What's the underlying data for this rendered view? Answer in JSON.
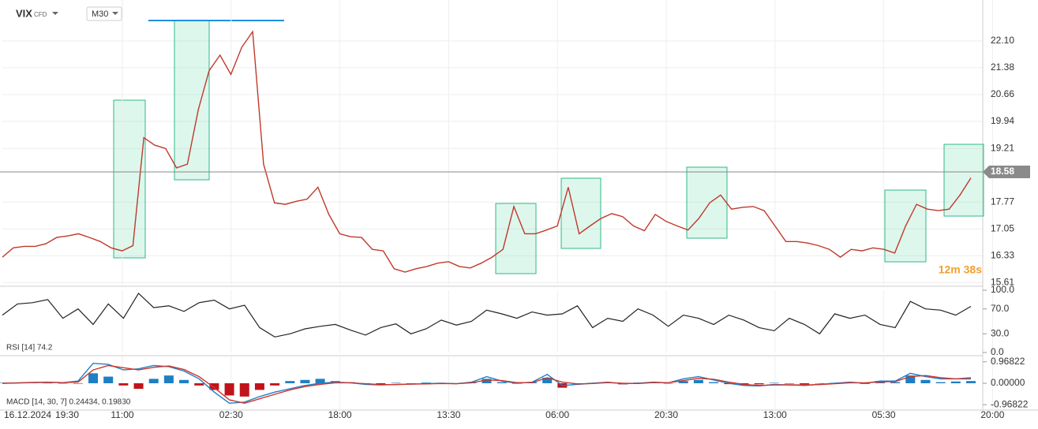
{
  "header": {
    "symbol": "VIX",
    "instrument": "CFD",
    "timeframe": "M30",
    "countdown": "12m 38s"
  },
  "time_axis": [
    "16.12.2024",
    "19:30",
    "11:00",
    "02:30",
    "18:00",
    "13:30",
    "06:00",
    "20:30",
    "13:00",
    "05:30",
    "20:00"
  ],
  "chart_data": [
    {
      "type": "line",
      "color": "#c0392b",
      "values": [
        16.29,
        16.54,
        16.58,
        16.58,
        16.65,
        16.82,
        16.86,
        16.92,
        16.82,
        16.71,
        16.54,
        16.46,
        16.6,
        19.5,
        19.3,
        19.21,
        18.69,
        18.79,
        20.25,
        21.3,
        21.72,
        21.2,
        21.93,
        22.35,
        18.79,
        17.75,
        17.71,
        17.79,
        17.85,
        18.17,
        17.44,
        16.92,
        16.84,
        16.82,
        16.5,
        16.46,
        15.98,
        15.89,
        15.98,
        16.04,
        16.13,
        16.17,
        16.04,
        16.0,
        16.13,
        16.29,
        16.5,
        17.65,
        16.92,
        16.92,
        17.02,
        17.13,
        18.17,
        16.92,
        17.13,
        17.33,
        17.46,
        17.38,
        17.13,
        17.0,
        17.44,
        17.25,
        17.13,
        17.02,
        17.33,
        17.75,
        17.96,
        17.58,
        17.63,
        17.65,
        17.54,
        17.13,
        16.71,
        16.71,
        16.67,
        16.6,
        16.5,
        16.29,
        16.5,
        16.46,
        16.54,
        16.5,
        16.4,
        17.13,
        17.71,
        17.58,
        17.54,
        17.58,
        17.96,
        18.42
      ],
      "current_price": 18.58,
      "grid": true,
      "ylim": [
        15.53,
        23.2
      ],
      "yticks": [
        15.61,
        16.33,
        17.05,
        17.77,
        19.21,
        19.94,
        20.66,
        21.38,
        {
          "value": 22.1,
          "label": "22.10"
        }
      ]
    },
    {
      "type": "line",
      "legend": "RSI [14] 74.2",
      "color": "#222222",
      "values": [
        60,
        78,
        80,
        85,
        55,
        70,
        45,
        78,
        55,
        95,
        72,
        75,
        66,
        80,
        84,
        70,
        76,
        40,
        25,
        30,
        38,
        42,
        45,
        36,
        28,
        40,
        46,
        30,
        38,
        52,
        44,
        50,
        68,
        62,
        55,
        65,
        60,
        62,
        75,
        40,
        55,
        50,
        70,
        60,
        42,
        60,
        55,
        45,
        60,
        52,
        40,
        35,
        55,
        45,
        30,
        62,
        55,
        60,
        45,
        40,
        82,
        70,
        68,
        60,
        74
      ],
      "ylim": [
        0,
        100
      ],
      "yticks": [
        {
          "value": 0,
          "label": "0.0"
        },
        {
          "value": 30,
          "label": "30.0"
        },
        {
          "value": 70,
          "label": "70.0"
        },
        {
          "value": 100,
          "label": "100.0"
        }
      ]
    },
    {
      "type": "macd",
      "legend": "MACD [14, 30, 7] 0.24434, 0.19830",
      "ylim": [
        -1.21,
        1.21
      ],
      "yticks": [
        {
          "value": -0.96822,
          "label": "-0.96822"
        },
        {
          "value": 0,
          "label": "0.00000"
        },
        {
          "value": 0.96822,
          "label": "0.96822"
        }
      ],
      "positive_color": "#1f7fc4",
      "negative_color": "#c0141a",
      "histogram": [
        0.02,
        0.03,
        0.02,
        0.01,
        0.0,
        -0.02,
        0.45,
        0.3,
        -0.1,
        -0.25,
        0.2,
        0.35,
        0.15,
        -0.1,
        -0.3,
        -0.55,
        -0.6,
        -0.3,
        -0.1,
        0.1,
        0.15,
        0.2,
        0.1,
        0.05,
        0.0,
        -0.05,
        0.02,
        0.0,
        0.03,
        0.02,
        -0.02,
        0.04,
        0.2,
        0.05,
        -0.02,
        0.05,
        0.25,
        -0.2,
        -0.05,
        0.02,
        0.05,
        -0.05,
        0.03,
        0.05,
        0.0,
        0.1,
        0.15,
        0.05,
        -0.04,
        -0.08,
        -0.05,
        0.02,
        -0.02,
        -0.05,
        0.0,
        0.02,
        0.05,
        -0.03,
        0.1,
        0.05,
        0.35,
        0.15,
        0.05,
        0.08,
        0.1
      ],
      "series": [
        {
          "color": "#1f7fc4",
          "values": [
            0.0,
            0.02,
            0.04,
            0.05,
            0.03,
            0.1,
            0.9,
            0.85,
            0.6,
            0.65,
            0.8,
            0.75,
            0.55,
            0.2,
            -0.4,
            -0.9,
            -0.85,
            -0.6,
            -0.4,
            -0.25,
            -0.1,
            0.0,
            0.05,
            0.02,
            -0.05,
            -0.08,
            -0.05,
            -0.04,
            -0.02,
            0.0,
            -0.02,
            0.05,
            0.3,
            0.1,
            0.0,
            0.05,
            0.4,
            -0.1,
            -0.05,
            0.0,
            0.05,
            -0.02,
            0.0,
            0.05,
            0.02,
            0.2,
            0.3,
            0.15,
            0.0,
            -0.1,
            -0.12,
            -0.05,
            -0.08,
            -0.1,
            -0.05,
            0.0,
            0.05,
            0.0,
            0.1,
            0.1,
            0.45,
            0.3,
            0.2,
            0.2,
            0.25
          ]
        },
        {
          "color": "#d0342c",
          "values": [
            0.0,
            0.01,
            0.03,
            0.04,
            0.03,
            0.05,
            0.6,
            0.8,
            0.7,
            0.6,
            0.72,
            0.78,
            0.62,
            0.3,
            -0.2,
            -0.75,
            -0.9,
            -0.7,
            -0.5,
            -0.3,
            -0.15,
            -0.05,
            0.02,
            0.02,
            -0.02,
            -0.06,
            -0.06,
            -0.04,
            -0.03,
            -0.01,
            -0.02,
            0.02,
            0.15,
            0.12,
            0.03,
            0.03,
            0.25,
            0.05,
            -0.03,
            -0.01,
            0.03,
            0.0,
            -0.01,
            0.03,
            0.02,
            0.12,
            0.22,
            0.18,
            0.05,
            -0.05,
            -0.1,
            -0.08,
            -0.07,
            -0.08,
            -0.06,
            -0.02,
            0.02,
            0.02,
            0.06,
            0.08,
            0.3,
            0.35,
            0.25,
            0.2,
            0.2
          ]
        }
      ]
    }
  ]
}
